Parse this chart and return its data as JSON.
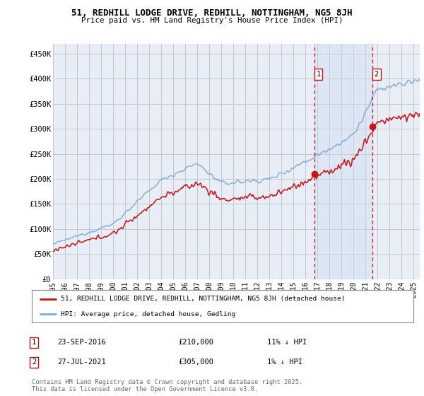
{
  "title_line1": "51, REDHILL LODGE DRIVE, REDHILL, NOTTINGHAM, NG5 8JH",
  "title_line2": "Price paid vs. HM Land Registry's House Price Index (HPI)",
  "ylabel_ticks": [
    "£0",
    "£50K",
    "£100K",
    "£150K",
    "£200K",
    "£250K",
    "£300K",
    "£350K",
    "£400K",
    "£450K"
  ],
  "ytick_values": [
    0,
    50000,
    100000,
    150000,
    200000,
    250000,
    300000,
    350000,
    400000,
    450000
  ],
  "ylim": [
    0,
    470000
  ],
  "xlim_start": 1995.0,
  "xlim_end": 2025.5,
  "background_color": "#ffffff",
  "plot_bg_color": "#e8eef8",
  "shade_color": "#d0dff5",
  "grid_color": "#c8c8c8",
  "hpi_color": "#7aaadd",
  "price_color": "#cc1111",
  "dashed_color": "#cc1111",
  "marker1_x": 2016.73,
  "marker1_y": 210000,
  "marker1_label": "1",
  "marker2_x": 2021.57,
  "marker2_y": 305000,
  "marker2_label": "2",
  "legend_entry1": "51, REDHILL LODGE DRIVE, REDHILL, NOTTINGHAM, NG5 8JH (detached house)",
  "legend_entry2": "HPI: Average price, detached house, Gedling",
  "note1_box1": "1",
  "note1_date": "23-SEP-2016",
  "note1_price": "£210,000",
  "note1_change": "11% ↓ HPI",
  "note2_box": "2",
  "note2_date": "27-JUL-2021",
  "note2_price": "£305,000",
  "note2_change": "1% ↓ HPI",
  "footer": "Contains HM Land Registry data © Crown copyright and database right 2025.\nThis data is licensed under the Open Government Licence v3.0."
}
